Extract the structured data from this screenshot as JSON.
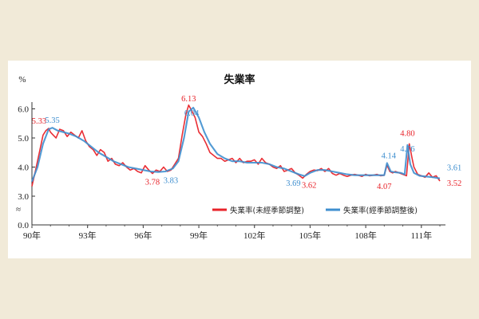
{
  "chart_data": {
    "type": "line",
    "title": "失業率",
    "ylabel": "%",
    "ylim": [
      0.0,
      6.0
    ],
    "y_ticks": [
      "0.0",
      "3.0",
      "4.0",
      "5.0",
      "6.0"
    ],
    "axis_break": "≈",
    "y_break_below": 3.0,
    "x_ticks": [
      "90年",
      "93年",
      "96年",
      "99年",
      "102年",
      "105年",
      "108年",
      "111年"
    ],
    "x_tick_years": [
      90,
      93,
      96,
      99,
      102,
      105,
      108,
      111
    ],
    "x_range": [
      90,
      112.3
    ],
    "grid": false,
    "legend_position": "bottom-right",
    "series": [
      {
        "name": "失業率(未經季節調整)",
        "color": "#e8232a",
        "x": [
          90.0,
          90.2,
          90.4,
          90.6,
          90.75,
          90.9,
          91.0,
          91.15,
          91.3,
          91.5,
          91.7,
          91.9,
          92.1,
          92.3,
          92.5,
          92.7,
          92.9,
          93.1,
          93.3,
          93.5,
          93.7,
          93.9,
          94.1,
          94.3,
          94.5,
          94.7,
          94.9,
          95.1,
          95.3,
          95.5,
          95.7,
          95.9,
          96.1,
          96.3,
          96.5,
          96.7,
          96.9,
          97.1,
          97.3,
          97.5,
          97.7,
          97.9,
          98.1,
          98.3,
          98.45,
          98.6,
          98.8,
          99.0,
          99.2,
          99.4,
          99.6,
          99.8,
          100.0,
          100.2,
          100.4,
          100.6,
          100.8,
          101.0,
          101.2,
          101.4,
          101.6,
          101.8,
          102.0,
          102.2,
          102.4,
          102.6,
          102.8,
          103.0,
          103.2,
          103.4,
          103.6,
          103.8,
          104.0,
          104.2,
          104.4,
          104.6,
          104.8,
          105.0,
          105.2,
          105.4,
          105.6,
          105.8,
          106.0,
          106.2,
          106.4,
          106.6,
          106.8,
          107.0,
          107.2,
          107.4,
          107.6,
          107.8,
          108.0,
          108.2,
          108.4,
          108.6,
          108.8,
          109.0,
          109.15,
          109.3,
          109.45,
          109.6,
          109.8,
          110.0,
          110.2,
          110.35,
          110.5,
          110.6,
          110.8,
          111.0,
          111.2,
          111.4,
          111.6,
          111.8,
          112.0
        ],
        "y": [
          3.34,
          3.9,
          4.5,
          5.1,
          5.25,
          5.33,
          5.2,
          5.1,
          5.0,
          5.3,
          5.25,
          5.05,
          5.2,
          5.1,
          5.0,
          5.25,
          4.9,
          4.7,
          4.6,
          4.4,
          4.6,
          4.5,
          4.2,
          4.3,
          4.1,
          4.05,
          4.15,
          4.0,
          3.9,
          3.95,
          3.85,
          3.8,
          4.05,
          3.9,
          3.78,
          3.9,
          3.85,
          4.0,
          3.85,
          3.9,
          4.1,
          4.3,
          5.1,
          5.8,
          6.13,
          5.95,
          5.7,
          5.2,
          5.05,
          4.8,
          4.5,
          4.4,
          4.3,
          4.3,
          4.2,
          4.25,
          4.3,
          4.15,
          4.3,
          4.15,
          4.2,
          4.2,
          4.25,
          4.1,
          4.3,
          4.15,
          4.1,
          4.0,
          3.95,
          4.05,
          3.85,
          3.9,
          3.95,
          3.8,
          3.72,
          3.62,
          3.75,
          3.85,
          3.9,
          3.88,
          3.95,
          3.85,
          3.95,
          3.78,
          3.72,
          3.78,
          3.72,
          3.68,
          3.72,
          3.75,
          3.72,
          3.68,
          3.75,
          3.7,
          3.72,
          3.75,
          3.7,
          3.72,
          4.07,
          3.85,
          3.8,
          3.85,
          3.8,
          3.75,
          3.7,
          4.8,
          4.3,
          4.0,
          3.75,
          3.7,
          3.65,
          3.8,
          3.65,
          3.7,
          3.52
        ]
      },
      {
        "name": "失業率(經季節調整後)",
        "color": "#3f8fcf",
        "x": [
          90.0,
          90.3,
          90.6,
          90.9,
          91.1,
          91.4,
          91.7,
          92.0,
          92.4,
          92.8,
          93.2,
          93.6,
          94.0,
          94.4,
          94.8,
          95.2,
          95.6,
          96.0,
          96.4,
          96.8,
          97.2,
          97.6,
          97.9,
          98.2,
          98.45,
          98.7,
          99.0,
          99.3,
          99.6,
          100.0,
          100.4,
          100.8,
          101.2,
          101.6,
          102.0,
          102.4,
          102.8,
          103.2,
          103.6,
          104.0,
          104.4,
          104.7,
          105.0,
          105.4,
          105.8,
          106.2,
          106.6,
          107.0,
          107.4,
          107.8,
          108.2,
          108.6,
          109.0,
          109.15,
          109.35,
          109.6,
          109.9,
          110.1,
          110.25,
          110.4,
          110.6,
          110.9,
          111.2,
          111.5,
          111.8,
          112.0
        ],
        "y": [
          3.5,
          4.0,
          4.8,
          5.3,
          5.35,
          5.25,
          5.2,
          5.15,
          5.05,
          4.9,
          4.7,
          4.5,
          4.35,
          4.2,
          4.1,
          4.0,
          3.95,
          3.9,
          3.85,
          3.83,
          3.85,
          3.95,
          4.2,
          5.0,
          5.9,
          6.04,
          5.7,
          5.2,
          4.8,
          4.45,
          4.3,
          4.2,
          4.2,
          4.15,
          4.15,
          4.15,
          4.1,
          4.0,
          3.95,
          3.85,
          3.75,
          3.69,
          3.8,
          3.9,
          3.9,
          3.85,
          3.8,
          3.75,
          3.72,
          3.72,
          3.72,
          3.72,
          3.72,
          4.14,
          3.85,
          3.82,
          3.8,
          3.75,
          4.76,
          4.1,
          3.8,
          3.7,
          3.68,
          3.66,
          3.63,
          3.61
        ]
      }
    ],
    "annotations": [
      {
        "text": "5.33",
        "x": 90.9,
        "y": 5.33,
        "series": 0,
        "dx": -12,
        "dy": -6
      },
      {
        "text": "5.35",
        "x": 91.1,
        "y": 5.35,
        "series": 1,
        "dx": 0,
        "dy": -6
      },
      {
        "text": "3.78",
        "x": 96.5,
        "y": 3.78,
        "series": 0,
        "dx": 0,
        "dy": 14
      },
      {
        "text": "3.83",
        "x": 96.8,
        "y": 3.83,
        "series": 1,
        "dx": 16,
        "dy": 14
      },
      {
        "text": "6.13",
        "x": 98.45,
        "y": 6.13,
        "series": 0,
        "dx": 0,
        "dy": -5
      },
      {
        "text": "6.04",
        "x": 98.7,
        "y": 6.04,
        "series": 1,
        "dx": -2,
        "dy": 10
      },
      {
        "text": "3.69",
        "x": 104.7,
        "y": 3.69,
        "series": 1,
        "dx": -14,
        "dy": 12
      },
      {
        "text": "3.62",
        "x": 104.6,
        "y": 3.62,
        "series": 0,
        "dx": 8,
        "dy": 12
      },
      {
        "text": "4.14",
        "x": 109.15,
        "y": 4.14,
        "series": 1,
        "dx": 2,
        "dy": -6
      },
      {
        "text": "4.07",
        "x": 109.0,
        "y": 4.07,
        "series": 0,
        "dx": 0,
        "dy": 30
      },
      {
        "text": "4.80",
        "x": 110.25,
        "y": 4.8,
        "series": 0,
        "dx": 0,
        "dy": -10
      },
      {
        "text": "4.76",
        "x": 110.25,
        "y": 4.76,
        "series": 1,
        "dx": 0,
        "dy": 8
      },
      {
        "text": "3.61",
        "x": 112.0,
        "y": 3.61,
        "series": 1,
        "dx": 18,
        "dy": -10
      },
      {
        "text": "3.52",
        "x": 112.0,
        "y": 3.52,
        "series": 0,
        "dx": 18,
        "dy": 6
      }
    ]
  }
}
